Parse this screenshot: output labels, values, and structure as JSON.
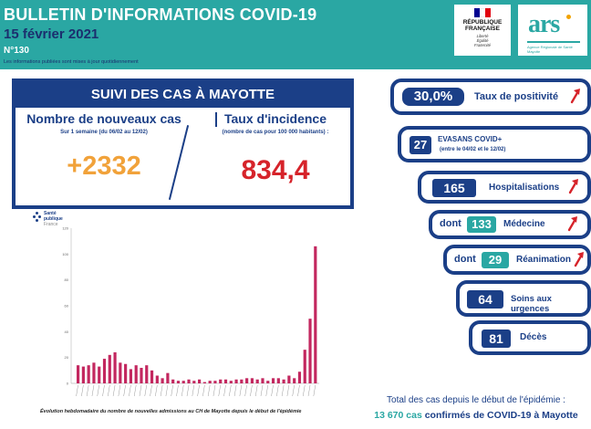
{
  "header": {
    "title": "BULLETIN D'INFORMATIONS COVID-19",
    "date": "15 février 2021",
    "number": "N°130",
    "note": "Les informations publiées sont mises à jour quotidiennement"
  },
  "logos": {
    "republique": {
      "line1": "RÉPUBLIQUE",
      "line2": "FRANÇAISE",
      "motto1": "Liberté",
      "motto2": "Égalité",
      "motto3": "Fraternité"
    },
    "ars": {
      "word": "ars",
      "subtitle": "Agence Régionale de Santé Mayotte"
    }
  },
  "suivi": {
    "title": "SUIVI DES CAS À MAYOTTE",
    "new_cases_label": "Nombre de nouveaux cas",
    "new_cases_sub": "Sur 1 semaine (du 06/02 au 12/02)",
    "new_cases_value": "+2332",
    "incidence_label": "Taux d'incidence",
    "incidence_sub": "(nombre de cas pour 100 000 habitants) :",
    "incidence_value": "834,4"
  },
  "sante_publique": {
    "line1": "Santé",
    "line2": "publique",
    "line3": "France"
  },
  "chart_data": {
    "type": "bar",
    "caption": "Évolution hebdomadaire du nombre de nouvelles admissions au CH de Mayotte depuis le début de l'épidémie",
    "ylim": [
      0,
      120
    ],
    "ytick_labels": [
      "0",
      "20",
      "40",
      "60",
      "80",
      "100",
      "120"
    ],
    "values": [
      14,
      13,
      14,
      16,
      13,
      19,
      22,
      24,
      16,
      15,
      11,
      14,
      12,
      14,
      10,
      6,
      4,
      8,
      3,
      2,
      2,
      3,
      2,
      3,
      1,
      2,
      2,
      3,
      3,
      2,
      3,
      3,
      4,
      4,
      3,
      4,
      2,
      4,
      4,
      3,
      6,
      4,
      9,
      26,
      50,
      106
    ],
    "color": "#c3275f"
  },
  "indicators": {
    "positivite": {
      "value": "30,0%",
      "label": "Taux de positivité"
    },
    "evasans": {
      "value": "27",
      "label": "EVASANS COVID+",
      "sub": "(entre le 04/02 et le 12/02)"
    },
    "hospitalisations": {
      "value": "165",
      "label": "Hospitalisations"
    },
    "medecine": {
      "prefix": "dont",
      "value": "133",
      "label": "Médecine"
    },
    "reanimation": {
      "prefix": "dont",
      "value": "29",
      "label": "Réanimation"
    },
    "urgences": {
      "value": "64",
      "label": "Soins aux urgences"
    },
    "deces": {
      "value": "81",
      "label": "Décès"
    }
  },
  "total": {
    "line1": "Total des cas depuis le début de l'épidémie :",
    "line2_value": "13 670 cas",
    "line2_text": "confirmés de COVID-19 à Mayotte"
  },
  "colors": {
    "teal": "#2aa7a3",
    "navy": "#1b3f87",
    "orange": "#f1a23a",
    "red": "#d6232a",
    "arrow": "#d6232a"
  }
}
